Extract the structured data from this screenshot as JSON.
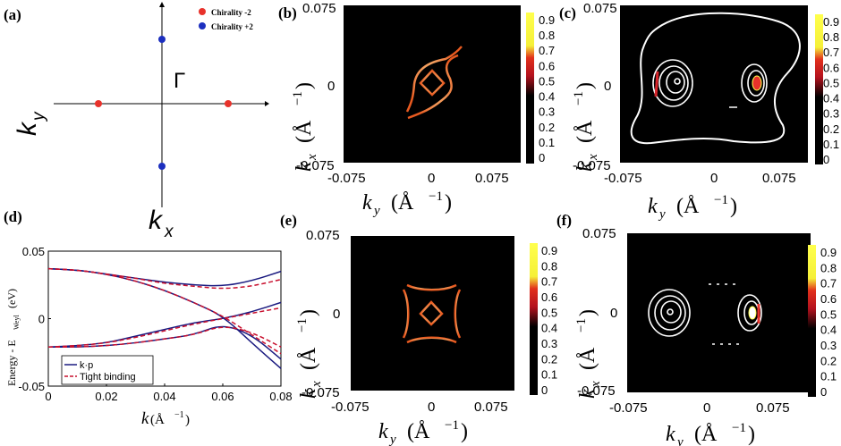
{
  "panel_labels": {
    "a": "(a)",
    "b": "(b)",
    "c": "(c)",
    "d": "(d)",
    "e": "(e)",
    "f": "(f)"
  },
  "panel_a": {
    "legend": [
      {
        "label": "Chirality -2",
        "color": "#e8322b"
      },
      {
        "label": "Chirality +2",
        "color": "#1c2fbf"
      }
    ],
    "gamma_label": "Γ",
    "ky_label": "k",
    "ky_sub": "y",
    "kx_label": "k",
    "kx_sub": "x"
  },
  "axis_text": {
    "ky": "k",
    "ky_sub": "y",
    "kx": "k",
    "kx_sub": "x",
    "units": "(Å",
    "units_exp": "−1",
    "units_close": ")"
  },
  "map_ticks": {
    "min": "-0.075",
    "zero": "0",
    "max": "0.075"
  },
  "colorbar": {
    "ticks": [
      "0.9",
      "0.8",
      "0.7",
      "0.6",
      "0.5",
      "0.4",
      "0.3",
      "0.2",
      "0.1",
      "0"
    ],
    "colors": [
      "#ffff4d",
      "#f5f038",
      "#e2301c",
      "#b3121e",
      "#000000"
    ]
  },
  "chart_data": [
    {
      "type": "line",
      "panel": "(d)",
      "xlabel": "k",
      "xlabel_units": "(Å",
      "xlabel_exp": "−1",
      "xlabel_close": ")",
      "ylabel": "Energy - E",
      "ylabel_sub": "Weyl",
      "ylabel_units": "(eV)",
      "xlim": [
        0,
        0.08
      ],
      "ylim": [
        -0.05,
        0.05
      ],
      "x_ticks": [
        "0",
        "0.02",
        "0.04",
        "0.06",
        "0.08"
      ],
      "y_ticks": [
        "0.05",
        "0",
        "-0.05"
      ],
      "x": [
        0,
        0.01,
        0.02,
        0.03,
        0.04,
        0.05,
        0.06,
        0.07,
        0.08
      ],
      "series": [
        {
          "name": "k·p",
          "color": "#1a1a80",
          "dash": "solid",
          "bands": [
            [
              0.037,
              0.036,
              0.033,
              0.03,
              0.027,
              0.025,
              0.024,
              0.028,
              0.035
            ],
            [
              0.037,
              0.036,
              0.033,
              0.028,
              0.021,
              0.012,
              0.002,
              -0.018,
              -0.037
            ],
            [
              -0.021,
              -0.02,
              -0.018,
              -0.013,
              -0.008,
              -0.003,
              0.0,
              0.005,
              0.012
            ],
            [
              -0.021,
              -0.021,
              -0.02,
              -0.018,
              -0.015,
              -0.012,
              -0.004,
              -0.012,
              -0.03
            ]
          ]
        },
        {
          "name": "Tight binding",
          "color": "#c8102e",
          "dash": "dashed",
          "bands": [
            [
              0.037,
              0.036,
              0.033,
              0.03,
              0.026,
              0.024,
              0.022,
              0.024,
              0.029
            ],
            [
              0.037,
              0.036,
              0.033,
              0.028,
              0.021,
              0.012,
              0.002,
              -0.012,
              -0.026
            ],
            [
              -0.021,
              -0.02,
              -0.018,
              -0.014,
              -0.009,
              -0.004,
              0.0,
              0.004,
              0.008
            ],
            [
              -0.021,
              -0.021,
              -0.02,
              -0.018,
              -0.015,
              -0.012,
              -0.005,
              -0.01,
              -0.021
            ]
          ]
        }
      ]
    }
  ]
}
